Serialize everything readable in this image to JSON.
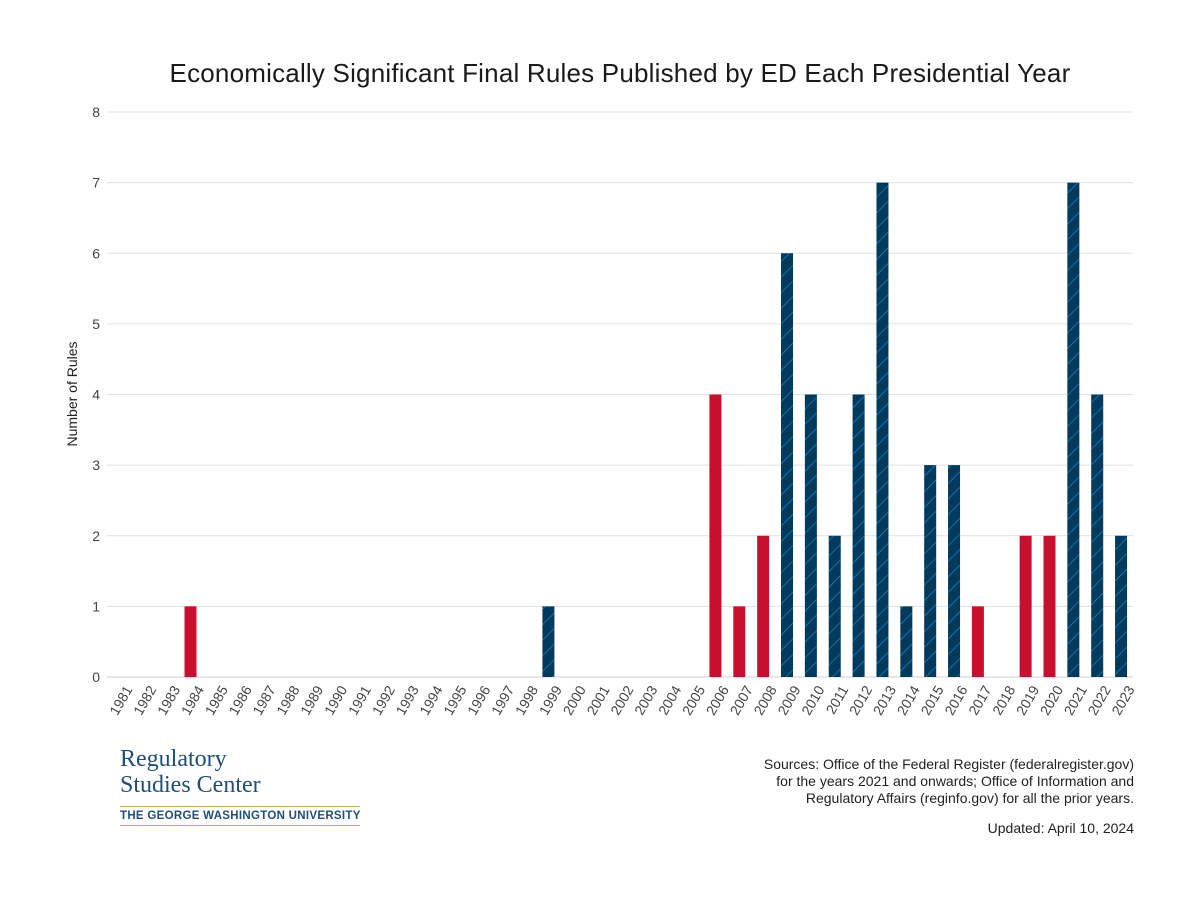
{
  "chart_data": {
    "type": "bar",
    "title": "Economically Significant Final Rules Published by ED Each Presidential Year",
    "xlabel": "",
    "ylabel": "Number of Rules",
    "ylim": [
      0,
      8
    ],
    "yticks": [
      0,
      1,
      2,
      3,
      4,
      5,
      6,
      7,
      8
    ],
    "grid": true,
    "categories": [
      "1981",
      "1982",
      "1983",
      "1984",
      "1985",
      "1986",
      "1987",
      "1988",
      "1989",
      "1990",
      "1991",
      "1992",
      "1993",
      "1994",
      "1995",
      "1996",
      "1997",
      "1998",
      "1999",
      "2000",
      "2001",
      "2002",
      "2003",
      "2004",
      "2005",
      "2006",
      "2007",
      "2008",
      "2009",
      "2010",
      "2011",
      "2012",
      "2013",
      "2014",
      "2015",
      "2016",
      "2017",
      "2018",
      "2019",
      "2020",
      "2021",
      "2022",
      "2023"
    ],
    "values": [
      0,
      0,
      0,
      1,
      0,
      0,
      0,
      0,
      0,
      0,
      0,
      0,
      0,
      0,
      0,
      0,
      0,
      0,
      1,
      0,
      0,
      0,
      0,
      0,
      0,
      4,
      1,
      2,
      6,
      4,
      2,
      4,
      7,
      1,
      3,
      3,
      1,
      0,
      2,
      2,
      7,
      4,
      2
    ],
    "party": [
      "R",
      "R",
      "R",
      "R",
      "R",
      "R",
      "R",
      "R",
      "R",
      "R",
      "R",
      "R",
      "D",
      "D",
      "D",
      "D",
      "D",
      "D",
      "D",
      "D",
      "R",
      "R",
      "R",
      "R",
      "R",
      "R",
      "R",
      "R",
      "D",
      "D",
      "D",
      "D",
      "D",
      "D",
      "D",
      "D",
      "R",
      "R",
      "R",
      "R",
      "D",
      "D",
      "D"
    ],
    "colors": {
      "R": "#c8102e",
      "D": "#003a5d",
      "hatch": "#2a8fd0"
    }
  },
  "footer": {
    "logo_line1": "Regulatory",
    "logo_line2": "Studies Center",
    "logo_univ": "THE GEORGE WASHINGTON UNIVERSITY",
    "sources_line1": "Sources: Office of the Federal Register (federalregister.gov)",
    "sources_line2": "for the years 2021 and onwards; Office of Information and",
    "sources_line3": "Regulatory Affairs (reginfo.gov) for all the prior years.",
    "updated": "Updated: April 10, 2024"
  }
}
